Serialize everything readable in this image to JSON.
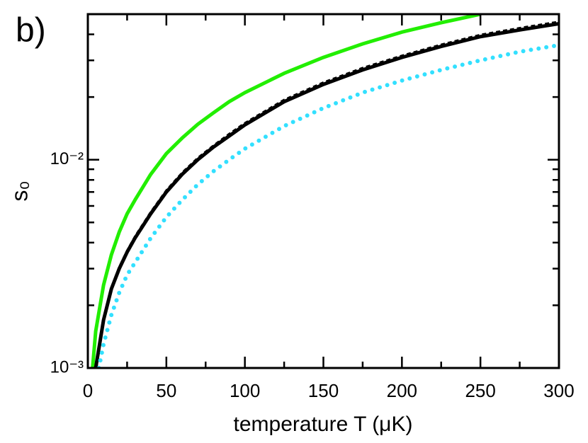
{
  "chart_data": {
    "type": "line",
    "annotation": "b)",
    "x_label": "temperature T (μK)",
    "y_label": "s₀",
    "log_y": true,
    "xlim": [
      0,
      300
    ],
    "xticks": [
      0,
      50,
      100,
      150,
      200,
      250,
      300
    ],
    "xminorticks": [
      25,
      75,
      125,
      175,
      225,
      275
    ],
    "ylim": [
      0.001,
      0.05
    ],
    "yticks": [
      {
        "value": 0.001,
        "label": "10⁻³"
      },
      {
        "value": 0.01,
        "label": "10⁻²"
      }
    ],
    "yminorticks": [
      0.002,
      0.003,
      0.004,
      0.005,
      0.006,
      0.007,
      0.008,
      0.009,
      0.02,
      0.03,
      0.04
    ],
    "series": [
      {
        "color": "#22ee00",
        "style": "solid",
        "x": [
          3,
          5,
          10,
          15,
          20,
          25,
          30,
          40,
          50,
          60,
          70,
          80,
          90,
          100,
          125,
          150,
          175,
          200,
          225,
          250
        ],
        "values": [
          0.001,
          0.0015,
          0.0025,
          0.0035,
          0.0045,
          0.0055,
          0.0064,
          0.0085,
          0.0107,
          0.0127,
          0.0148,
          0.0168,
          0.019,
          0.021,
          0.026,
          0.031,
          0.036,
          0.041,
          0.0455,
          0.05
        ]
      },
      {
        "color": "#000000",
        "style": "solid",
        "x": [
          5,
          10,
          15,
          20,
          25,
          30,
          40,
          50,
          60,
          70,
          80,
          90,
          100,
          125,
          150,
          175,
          200,
          225,
          250,
          275,
          300
        ],
        "values": [
          0.001,
          0.0017,
          0.0024,
          0.003,
          0.0036,
          0.0042,
          0.0055,
          0.007,
          0.0085,
          0.01,
          0.0115,
          0.013,
          0.0147,
          0.019,
          0.023,
          0.027,
          0.031,
          0.035,
          0.039,
          0.042,
          0.045
        ]
      },
      {
        "color": "#000000",
        "style": "dashed",
        "x": [
          5.5,
          10,
          15,
          20,
          25,
          30,
          40,
          50,
          60,
          70,
          80,
          90,
          100,
          125,
          150,
          175,
          200,
          225,
          250,
          275,
          300
        ],
        "values": [
          0.001,
          0.00172,
          0.00243,
          0.00305,
          0.00366,
          0.00428,
          0.0056,
          0.00713,
          0.00866,
          0.0102,
          0.0117,
          0.0133,
          0.015,
          0.0194,
          0.0235,
          0.0276,
          0.0316,
          0.0357,
          0.0398,
          0.0429,
          0.046
        ]
      },
      {
        "color": "#33e0ff",
        "style": "dotted",
        "x": [
          7,
          10,
          15,
          20,
          25,
          30,
          40,
          50,
          60,
          70,
          80,
          90,
          100,
          125,
          150,
          175,
          200,
          225,
          250,
          275,
          300
        ],
        "values": [
          0.001,
          0.0013,
          0.0018,
          0.0023,
          0.0028,
          0.0032,
          0.0042,
          0.0053,
          0.0064,
          0.0076,
          0.0088,
          0.01,
          0.0113,
          0.0145,
          0.0177,
          0.021,
          0.024,
          0.027,
          0.03,
          0.033,
          0.0355
        ]
      }
    ]
  }
}
